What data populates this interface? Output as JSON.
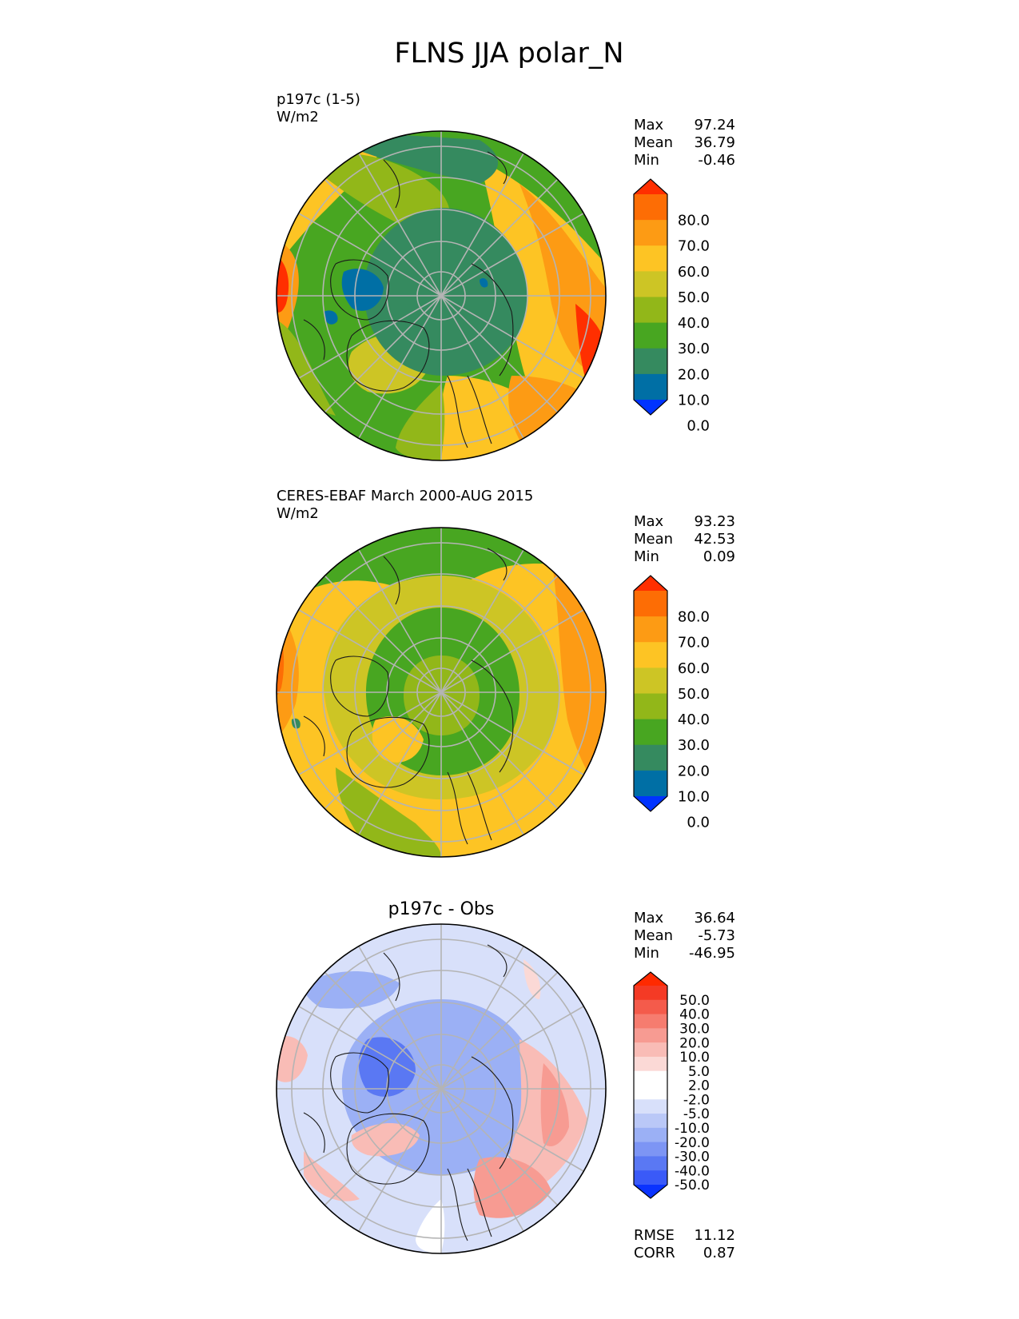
{
  "title": "FLNS JJA polar_N",
  "stat_labels": {
    "max": "Max",
    "mean": "Mean",
    "min": "Min",
    "rmse": "RMSE",
    "corr": "CORR"
  },
  "panels": [
    {
      "id": "test",
      "name_line1": "p197c (1-5)",
      "name_line2": "W/m2",
      "center_title": "",
      "stats": {
        "max": "97.24",
        "mean": "36.79",
        "min": "-0.46"
      },
      "colorbar": {
        "tick_labels": [
          "80.0",
          "70.0",
          "60.0",
          "50.0",
          "40.0",
          "30.0",
          "20.0",
          "10.0",
          "0.0"
        ],
        "colors": [
          "#0033ff",
          "#006fa5",
          "#358a5f",
          "#48a621",
          "#92b719",
          "#cdc525",
          "#fdc424",
          "#fd9b14",
          "#fd6d05",
          "#ff2f00"
        ]
      }
    },
    {
      "id": "reference",
      "name_line1": "CERES-EBAF March 2000-AUG 2015",
      "name_line2": "W/m2",
      "center_title": "",
      "stats": {
        "max": "93.23",
        "mean": "42.53",
        "min": "0.09"
      },
      "colorbar": {
        "tick_labels": [
          "80.0",
          "70.0",
          "60.0",
          "50.0",
          "40.0",
          "30.0",
          "20.0",
          "10.0",
          "0.0"
        ],
        "colors": [
          "#0033ff",
          "#006fa5",
          "#358a5f",
          "#48a621",
          "#92b719",
          "#cdc525",
          "#fdc424",
          "#fd9b14",
          "#fd6d05",
          "#ff2f00"
        ]
      }
    },
    {
      "id": "difference",
      "name_line1": "",
      "name_line2": "",
      "center_title": "p197c - Obs",
      "stats": {
        "max": "36.64",
        "mean": "-5.73",
        "min": "-46.95"
      },
      "colorbar": {
        "tick_labels": [
          "50.0",
          "40.0",
          "30.0",
          "20.0",
          "10.0",
          "5.0",
          "2.0",
          "-2.0",
          "-5.0",
          "-10.0",
          "-20.0",
          "-30.0",
          "-40.0",
          "-50.0"
        ],
        "colors": [
          "#0a33ff",
          "#3a5af8",
          "#5a78f3",
          "#7d95f4",
          "#9bb0f5",
          "#bac8f7",
          "#d8e0fa",
          "#ffffff",
          "#ffffff",
          "#fbd9d6",
          "#f9bcb6",
          "#f79b92",
          "#f67c6f",
          "#f45b4b",
          "#f43a25",
          "#ff2a00"
        ]
      },
      "metrics": {
        "rmse": "11.12",
        "corr": "0.87"
      }
    }
  ]
}
